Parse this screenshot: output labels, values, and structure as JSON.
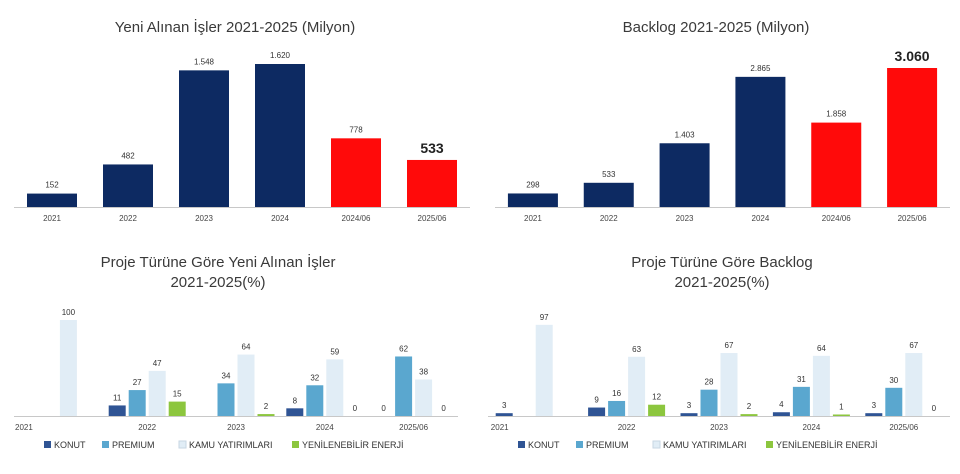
{
  "colors": {
    "navy": "#0d2a62",
    "red": "#ff0a0a",
    "konut": "#2f5494",
    "premium": "#5aa7cf",
    "kamu": "#e1edf6",
    "yenilenebilir": "#8cc63e",
    "axis": "#c8c8c8"
  },
  "chart_data": [
    {
      "id": "new-orders",
      "type": "bar",
      "title": "Yeni Alınan İşler 2021-2025 (Milyon)",
      "categories": [
        "2021",
        "2022",
        "2023",
        "2024",
        "2024/06",
        "2025/06"
      ],
      "values": [
        152,
        482,
        1548,
        1620,
        778,
        533
      ],
      "value_labels": [
        "152",
        "482",
        "1.548",
        "1.620",
        "778",
        "533"
      ],
      "bar_colors": [
        "navy",
        "navy",
        "navy",
        "navy",
        "red",
        "red"
      ],
      "emphasized_label_index": 5,
      "ylim": [
        0,
        1620
      ]
    },
    {
      "id": "backlog",
      "type": "bar",
      "title": "Backlog 2021-2025 (Milyon)",
      "categories": [
        "2021",
        "2022",
        "2023",
        "2024",
        "2024/06",
        "2025/06"
      ],
      "values": [
        298,
        533,
        1403,
        2865,
        1858,
        3060
      ],
      "value_labels": [
        "298",
        "533",
        "1.403",
        "2.865",
        "1.858",
        "3.060"
      ],
      "bar_colors": [
        "navy",
        "navy",
        "navy",
        "navy",
        "red",
        "red"
      ],
      "emphasized_label_index": 5,
      "ylim": [
        0,
        3060
      ]
    },
    {
      "id": "new-orders-by-type",
      "type": "bar",
      "title_lines": [
        "Proje Türüne Göre Yeni Alınan İşler",
        "2021-2025(%)"
      ],
      "categories": [
        "2021",
        "2022",
        "2023",
        "2024",
        "2025/06"
      ],
      "series": [
        {
          "name": "KONUT",
          "color": "konut",
          "values": [
            null,
            11,
            null,
            8,
            0
          ],
          "labels": [
            "",
            "11",
            "",
            "8",
            "0"
          ]
        },
        {
          "name": "PREMIUM",
          "color": "premium",
          "values": [
            null,
            27,
            34,
            32,
            62
          ],
          "labels": [
            "",
            "27",
            "34",
            "32",
            "62"
          ]
        },
        {
          "name": "KAMU YATIRIMLARI",
          "color": "kamu",
          "values": [
            100,
            47,
            64,
            59,
            38
          ],
          "labels": [
            "100",
            "47",
            "64",
            "59",
            "38"
          ]
        },
        {
          "name": "YENİLENEBİLİR ENERJİ",
          "color": "yenilenebilir",
          "values": [
            null,
            15,
            2,
            0,
            0
          ],
          "labels": [
            "",
            "15",
            "2",
            "0",
            "0"
          ]
        }
      ],
      "ylim": [
        0,
        100
      ]
    },
    {
      "id": "backlog-by-type",
      "type": "bar",
      "title_lines": [
        "Proje Türüne Göre Backlog",
        "2021-2025(%)"
      ],
      "categories": [
        "2021",
        "2022",
        "2023",
        "2024",
        "2025/06"
      ],
      "series": [
        {
          "name": "KONUT",
          "color": "konut",
          "values": [
            3,
            9,
            3,
            4,
            3
          ],
          "labels": [
            "3",
            "9",
            "3",
            "4",
            "3"
          ]
        },
        {
          "name": "PREMIUM",
          "color": "premium",
          "values": [
            null,
            16,
            28,
            31,
            30
          ],
          "labels": [
            "",
            "16",
            "28",
            "31",
            "30"
          ]
        },
        {
          "name": "KAMU YATIRIMLARI",
          "color": "kamu",
          "values": [
            97,
            63,
            67,
            64,
            67
          ],
          "labels": [
            "97",
            "63",
            "67",
            "64",
            "67"
          ]
        },
        {
          "name": "YENİLENEBİLİR ENERJİ",
          "color": "yenilenebilir",
          "values": [
            null,
            12,
            2,
            1,
            0
          ],
          "labels": [
            "",
            "12",
            "2",
            "1",
            "0"
          ]
        }
      ],
      "ylim": [
        0,
        100
      ]
    }
  ]
}
